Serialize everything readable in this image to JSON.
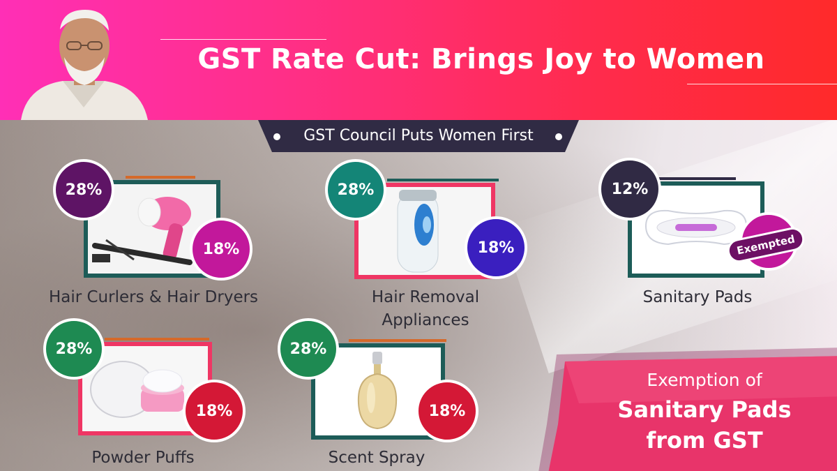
{
  "header": {
    "title": "GST Rate Cut: Brings Joy to Women"
  },
  "subtitle": "GST Council Puts Women First",
  "products": [
    {
      "label": "Hair Curlers  & Hair Dryers",
      "old_rate": "28%",
      "new_rate": "18%"
    },
    {
      "label": "Hair Removal Appliances",
      "old_rate": "28%",
      "new_rate": "18%"
    },
    {
      "label": "Sanitary Pads",
      "old_rate": "12%",
      "new_rate": "Exempted"
    },
    {
      "label": "Powder Puffs",
      "old_rate": "28%",
      "new_rate": "18%"
    },
    {
      "label": "Scent Spray",
      "old_rate": "28%",
      "new_rate": "18%"
    }
  ],
  "callout": {
    "line1": "Exemption of",
    "line2": "Sanitary Pads",
    "line3": "from GST"
  },
  "colors": {
    "header_start": "#ff2fb6",
    "header_end": "#ff2a2a",
    "badge_purple": "#5e1465",
    "badge_magenta": "#c2189b",
    "badge_teal": "#148577",
    "badge_indigo": "#3a1fbf",
    "badge_dark": "#302a44",
    "badge_green": "#1e8a52",
    "badge_red": "#d41836",
    "frame_teal": "#1d5c58",
    "frame_pink": "#ef3664",
    "accent_orange": "#d5692a"
  }
}
